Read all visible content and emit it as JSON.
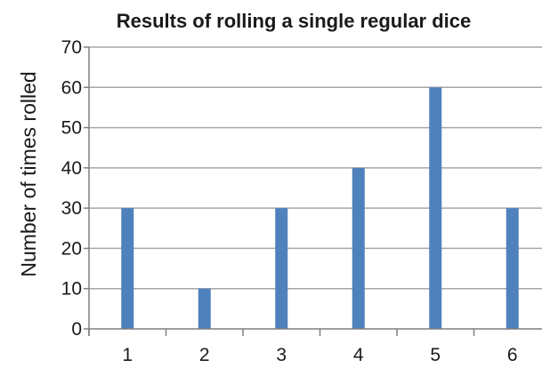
{
  "chart_data": {
    "type": "bar",
    "title": "Results of rolling a single regular dice",
    "xlabel": "",
    "ylabel": "Number of times rolled",
    "categories": [
      "1",
      "2",
      "3",
      "4",
      "5",
      "6"
    ],
    "values": [
      30,
      10,
      30,
      40,
      60,
      30
    ],
    "ylim": [
      0,
      70
    ],
    "yticks": [
      0,
      10,
      20,
      30,
      40,
      50,
      60,
      70
    ],
    "grid": true,
    "bar_color": "#4f81bd",
    "grid_color": "#a6a6a6",
    "axis_color": "#7f7f7f",
    "text_color": "#1a1a1a"
  }
}
